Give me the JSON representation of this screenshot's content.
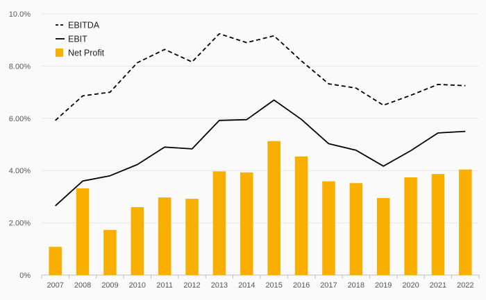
{
  "chart_data": {
    "type": "bar",
    "categories": [
      "2007",
      "2008",
      "2009",
      "2010",
      "2011",
      "2012",
      "2013",
      "2014",
      "2015",
      "2016",
      "2017",
      "2018",
      "2019",
      "2020",
      "2021",
      "2022"
    ],
    "ylim": [
      0,
      10
    ],
    "yticks": [
      0,
      2,
      4,
      6,
      8,
      10
    ],
    "ytick_labels": [
      "0%",
      "2.00%",
      "4.00%",
      "6.00%",
      "8.00%",
      "10.0%"
    ],
    "grid": true,
    "legend_position": "top-left",
    "series": [
      {
        "name": "EBITDA",
        "kind": "line",
        "style": "dashed",
        "color": "#000000",
        "values": [
          5.92,
          6.86,
          7.0,
          8.13,
          8.64,
          8.16,
          9.24,
          8.9,
          9.16,
          8.2,
          7.32,
          7.16,
          6.5,
          6.88,
          7.3,
          7.25
        ]
      },
      {
        "name": "EBIT",
        "kind": "line",
        "style": "solid",
        "color": "#000000",
        "values": [
          2.65,
          3.6,
          3.8,
          4.23,
          4.9,
          4.83,
          5.92,
          5.95,
          6.7,
          5.96,
          5.03,
          4.78,
          4.17,
          4.76,
          5.44,
          5.5
        ]
      },
      {
        "name": "Net Profit",
        "kind": "bar",
        "color": "#F9AF00",
        "values": [
          1.08,
          3.32,
          1.73,
          2.6,
          2.97,
          2.92,
          3.97,
          3.93,
          5.13,
          4.54,
          3.59,
          3.52,
          2.95,
          3.74,
          3.87,
          4.04
        ]
      }
    ]
  }
}
